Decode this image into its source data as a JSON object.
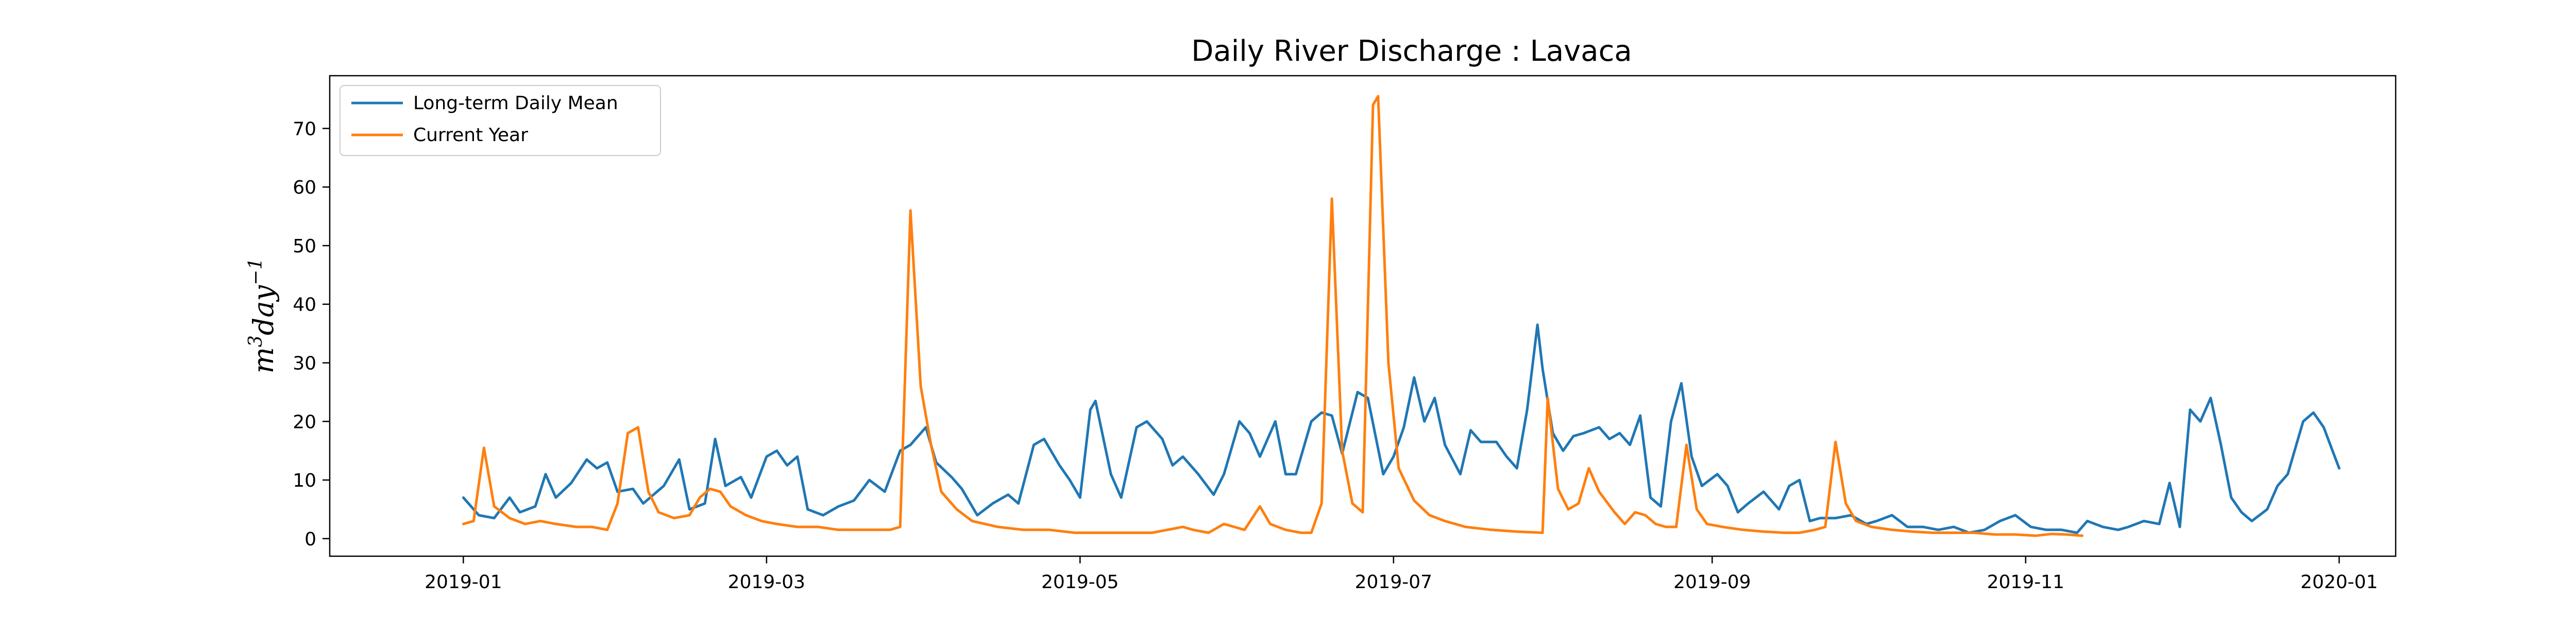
{
  "chart_data": {
    "type": "line",
    "title": "Daily River Discharge : Lavaca",
    "ylabel": "m^3 day^-1",
    "ylabel_parts": {
      "base1": "m",
      "sup1": "3",
      "base2": "day",
      "sup2": "−1"
    },
    "xlabel": "",
    "x_axis_type": "date",
    "xlim": [
      "2018-12-06",
      "2020-01-12"
    ],
    "ylim": [
      -3,
      79
    ],
    "yticks": [
      0,
      10,
      20,
      30,
      40,
      50,
      60,
      70
    ],
    "xticks": [
      "2019-01",
      "2019-03",
      "2019-05",
      "2019-07",
      "2019-09",
      "2019-11",
      "2020-01"
    ],
    "xtick_dates": [
      "2019-01-01",
      "2019-03-01",
      "2019-05-01",
      "2019-07-01",
      "2019-09-01",
      "2019-11-01",
      "2020-01-01"
    ],
    "legend_position": "upper-left",
    "grid": false,
    "series": [
      {
        "name": "Long-term Daily Mean",
        "color": "#1f77b4",
        "points": [
          [
            "2019-01-01",
            7
          ],
          [
            "2019-01-04",
            4
          ],
          [
            "2019-01-07",
            3.5
          ],
          [
            "2019-01-10",
            7
          ],
          [
            "2019-01-12",
            4.5
          ],
          [
            "2019-01-15",
            5.5
          ],
          [
            "2019-01-17",
            11
          ],
          [
            "2019-01-19",
            7
          ],
          [
            "2019-01-22",
            9.5
          ],
          [
            "2019-01-25",
            13.5
          ],
          [
            "2019-01-27",
            12
          ],
          [
            "2019-01-29",
            13
          ],
          [
            "2019-01-31",
            8
          ],
          [
            "2019-02-03",
            8.5
          ],
          [
            "2019-02-05",
            6
          ],
          [
            "2019-02-09",
            9
          ],
          [
            "2019-02-12",
            13.5
          ],
          [
            "2019-02-14",
            5
          ],
          [
            "2019-02-17",
            6
          ],
          [
            "2019-02-19",
            17
          ],
          [
            "2019-02-21",
            9
          ],
          [
            "2019-02-24",
            10.5
          ],
          [
            "2019-02-26",
            7
          ],
          [
            "2019-03-01",
            14
          ],
          [
            "2019-03-03",
            15
          ],
          [
            "2019-03-05",
            12.5
          ],
          [
            "2019-03-07",
            14
          ],
          [
            "2019-03-09",
            5
          ],
          [
            "2019-03-12",
            4
          ],
          [
            "2019-03-15",
            5.5
          ],
          [
            "2019-03-18",
            6.5
          ],
          [
            "2019-03-21",
            10
          ],
          [
            "2019-03-24",
            8
          ],
          [
            "2019-03-27",
            15
          ],
          [
            "2019-03-29",
            16
          ],
          [
            "2019-04-01",
            19
          ],
          [
            "2019-04-03",
            13
          ],
          [
            "2019-04-06",
            10.5
          ],
          [
            "2019-04-08",
            8.5
          ],
          [
            "2019-04-11",
            4
          ],
          [
            "2019-04-14",
            6
          ],
          [
            "2019-04-17",
            7.5
          ],
          [
            "2019-04-19",
            6
          ],
          [
            "2019-04-22",
            16
          ],
          [
            "2019-04-24",
            17
          ],
          [
            "2019-04-27",
            12.5
          ],
          [
            "2019-04-29",
            10
          ],
          [
            "2019-05-01",
            7
          ],
          [
            "2019-05-03",
            22
          ],
          [
            "2019-05-04",
            23.5
          ],
          [
            "2019-05-07",
            11
          ],
          [
            "2019-05-09",
            7
          ],
          [
            "2019-05-12",
            19
          ],
          [
            "2019-05-14",
            20
          ],
          [
            "2019-05-17",
            17
          ],
          [
            "2019-05-19",
            12.5
          ],
          [
            "2019-05-21",
            14
          ],
          [
            "2019-05-24",
            11
          ],
          [
            "2019-05-27",
            7.5
          ],
          [
            "2019-05-29",
            11
          ],
          [
            "2019-06-01",
            20
          ],
          [
            "2019-06-03",
            18
          ],
          [
            "2019-06-05",
            14
          ],
          [
            "2019-06-08",
            20
          ],
          [
            "2019-06-10",
            11
          ],
          [
            "2019-06-12",
            11
          ],
          [
            "2019-06-15",
            20
          ],
          [
            "2019-06-17",
            21.5
          ],
          [
            "2019-06-19",
            21
          ],
          [
            "2019-06-21",
            14.5
          ],
          [
            "2019-06-24",
            25
          ],
          [
            "2019-06-26",
            24
          ],
          [
            "2019-06-29",
            11
          ],
          [
            "2019-07-01",
            14
          ],
          [
            "2019-07-03",
            19
          ],
          [
            "2019-07-05",
            27.5
          ],
          [
            "2019-07-07",
            20
          ],
          [
            "2019-07-09",
            24
          ],
          [
            "2019-07-11",
            16
          ],
          [
            "2019-07-14",
            11
          ],
          [
            "2019-07-16",
            18.5
          ],
          [
            "2019-07-18",
            16.5
          ],
          [
            "2019-07-21",
            16.5
          ],
          [
            "2019-07-23",
            14
          ],
          [
            "2019-07-25",
            12
          ],
          [
            "2019-07-27",
            22
          ],
          [
            "2019-07-29",
            36.5
          ],
          [
            "2019-07-30",
            29
          ],
          [
            "2019-08-01",
            18
          ],
          [
            "2019-08-03",
            15
          ],
          [
            "2019-08-05",
            17.5
          ],
          [
            "2019-08-07",
            18
          ],
          [
            "2019-08-10",
            19
          ],
          [
            "2019-08-12",
            17
          ],
          [
            "2019-08-14",
            18
          ],
          [
            "2019-08-16",
            16
          ],
          [
            "2019-08-18",
            21
          ],
          [
            "2019-08-20",
            7
          ],
          [
            "2019-08-22",
            5.5
          ],
          [
            "2019-08-24",
            20
          ],
          [
            "2019-08-26",
            26.5
          ],
          [
            "2019-08-28",
            14
          ],
          [
            "2019-08-30",
            9
          ],
          [
            "2019-09-02",
            11
          ],
          [
            "2019-09-04",
            9
          ],
          [
            "2019-09-06",
            4.5
          ],
          [
            "2019-09-08",
            6
          ],
          [
            "2019-09-11",
            8
          ],
          [
            "2019-09-14",
            5
          ],
          [
            "2019-09-16",
            9
          ],
          [
            "2019-09-18",
            10
          ],
          [
            "2019-09-20",
            3
          ],
          [
            "2019-09-22",
            3.5
          ],
          [
            "2019-09-25",
            3.5
          ],
          [
            "2019-09-28",
            4
          ],
          [
            "2019-10-01",
            2.5
          ],
          [
            "2019-10-03",
            3
          ],
          [
            "2019-10-06",
            4
          ],
          [
            "2019-10-09",
            2
          ],
          [
            "2019-10-12",
            2
          ],
          [
            "2019-10-15",
            1.5
          ],
          [
            "2019-10-18",
            2
          ],
          [
            "2019-10-21",
            1
          ],
          [
            "2019-10-24",
            1.5
          ],
          [
            "2019-10-27",
            3
          ],
          [
            "2019-10-30",
            4
          ],
          [
            "2019-11-02",
            2
          ],
          [
            "2019-11-05",
            1.5
          ],
          [
            "2019-11-08",
            1.5
          ],
          [
            "2019-11-11",
            1
          ],
          [
            "2019-11-13",
            3
          ],
          [
            "2019-11-16",
            2
          ],
          [
            "2019-11-19",
            1.5
          ],
          [
            "2019-11-21",
            2
          ],
          [
            "2019-11-24",
            3
          ],
          [
            "2019-11-27",
            2.5
          ],
          [
            "2019-11-29",
            9.5
          ],
          [
            "2019-12-01",
            2
          ],
          [
            "2019-12-03",
            22
          ],
          [
            "2019-12-05",
            20
          ],
          [
            "2019-12-07",
            24
          ],
          [
            "2019-12-09",
            16
          ],
          [
            "2019-12-11",
            7
          ],
          [
            "2019-12-13",
            4.5
          ],
          [
            "2019-12-15",
            3
          ],
          [
            "2019-12-18",
            5
          ],
          [
            "2019-12-20",
            9
          ],
          [
            "2019-12-22",
            11
          ],
          [
            "2019-12-25",
            20
          ],
          [
            "2019-12-27",
            21.5
          ],
          [
            "2019-12-29",
            19
          ],
          [
            "2020-01-01",
            12
          ]
        ]
      },
      {
        "name": "Current Year",
        "color": "#ff7f0e",
        "points": [
          [
            "2019-01-01",
            2.5
          ],
          [
            "2019-01-03",
            3
          ],
          [
            "2019-01-05",
            15.5
          ],
          [
            "2019-01-07",
            5.5
          ],
          [
            "2019-01-10",
            3.5
          ],
          [
            "2019-01-13",
            2.5
          ],
          [
            "2019-01-16",
            3
          ],
          [
            "2019-01-19",
            2.5
          ],
          [
            "2019-01-23",
            2
          ],
          [
            "2019-01-26",
            2
          ],
          [
            "2019-01-29",
            1.5
          ],
          [
            "2019-01-31",
            6
          ],
          [
            "2019-02-02",
            18
          ],
          [
            "2019-02-04",
            19
          ],
          [
            "2019-02-06",
            8
          ],
          [
            "2019-02-08",
            4.5
          ],
          [
            "2019-02-11",
            3.5
          ],
          [
            "2019-02-14",
            4
          ],
          [
            "2019-02-16",
            7
          ],
          [
            "2019-02-18",
            8.5
          ],
          [
            "2019-02-20",
            8
          ],
          [
            "2019-02-22",
            5.5
          ],
          [
            "2019-02-25",
            4
          ],
          [
            "2019-02-28",
            3
          ],
          [
            "2019-03-03",
            2.5
          ],
          [
            "2019-03-07",
            2
          ],
          [
            "2019-03-11",
            2
          ],
          [
            "2019-03-15",
            1.5
          ],
          [
            "2019-03-19",
            1.5
          ],
          [
            "2019-03-22",
            1.5
          ],
          [
            "2019-03-25",
            1.5
          ],
          [
            "2019-03-27",
            2
          ],
          [
            "2019-03-29",
            56
          ],
          [
            "2019-03-31",
            26
          ],
          [
            "2019-04-02",
            16
          ],
          [
            "2019-04-04",
            8
          ],
          [
            "2019-04-07",
            5
          ],
          [
            "2019-04-10",
            3
          ],
          [
            "2019-04-15",
            2
          ],
          [
            "2019-04-20",
            1.5
          ],
          [
            "2019-04-25",
            1.5
          ],
          [
            "2019-04-30",
            1
          ],
          [
            "2019-05-05",
            1
          ],
          [
            "2019-05-10",
            1
          ],
          [
            "2019-05-15",
            1
          ],
          [
            "2019-05-18",
            1.5
          ],
          [
            "2019-05-21",
            2
          ],
          [
            "2019-05-23",
            1.5
          ],
          [
            "2019-05-26",
            1
          ],
          [
            "2019-05-29",
            2.5
          ],
          [
            "2019-05-31",
            2
          ],
          [
            "2019-06-02",
            1.5
          ],
          [
            "2019-06-05",
            5.5
          ],
          [
            "2019-06-07",
            2.5
          ],
          [
            "2019-06-10",
            1.5
          ],
          [
            "2019-06-13",
            1
          ],
          [
            "2019-06-15",
            1
          ],
          [
            "2019-06-17",
            6
          ],
          [
            "2019-06-19",
            58
          ],
          [
            "2019-06-21",
            15
          ],
          [
            "2019-06-23",
            6
          ],
          [
            "2019-06-25",
            4.5
          ],
          [
            "2019-06-27",
            74
          ],
          [
            "2019-06-28",
            75.5
          ],
          [
            "2019-06-30",
            30
          ],
          [
            "2019-07-02",
            12
          ],
          [
            "2019-07-05",
            6.5
          ],
          [
            "2019-07-08",
            4
          ],
          [
            "2019-07-11",
            3
          ],
          [
            "2019-07-15",
            2
          ],
          [
            "2019-07-20",
            1.5
          ],
          [
            "2019-07-25",
            1.2
          ],
          [
            "2019-07-30",
            1
          ],
          [
            "2019-07-31",
            24
          ],
          [
            "2019-08-02",
            8.5
          ],
          [
            "2019-08-04",
            5
          ],
          [
            "2019-08-06",
            6
          ],
          [
            "2019-08-08",
            12
          ],
          [
            "2019-08-10",
            8
          ],
          [
            "2019-08-13",
            4.5
          ],
          [
            "2019-08-15",
            2.5
          ],
          [
            "2019-08-17",
            4.5
          ],
          [
            "2019-08-19",
            4
          ],
          [
            "2019-08-21",
            2.5
          ],
          [
            "2019-08-23",
            2
          ],
          [
            "2019-08-25",
            2
          ],
          [
            "2019-08-27",
            16
          ],
          [
            "2019-08-29",
            5
          ],
          [
            "2019-08-31",
            2.5
          ],
          [
            "2019-09-03",
            2
          ],
          [
            "2019-09-07",
            1.5
          ],
          [
            "2019-09-11",
            1.2
          ],
          [
            "2019-09-15",
            1
          ],
          [
            "2019-09-18",
            1
          ],
          [
            "2019-09-21",
            1.5
          ],
          [
            "2019-09-23",
            2
          ],
          [
            "2019-09-25",
            16.5
          ],
          [
            "2019-09-27",
            6
          ],
          [
            "2019-09-29",
            3
          ],
          [
            "2019-10-02",
            2
          ],
          [
            "2019-10-06",
            1.5
          ],
          [
            "2019-10-10",
            1.2
          ],
          [
            "2019-10-14",
            1
          ],
          [
            "2019-10-18",
            1
          ],
          [
            "2019-10-22",
            1
          ],
          [
            "2019-10-26",
            0.7
          ],
          [
            "2019-10-30",
            0.7
          ],
          [
            "2019-11-03",
            0.5
          ],
          [
            "2019-11-06",
            0.8
          ],
          [
            "2019-11-09",
            0.7
          ],
          [
            "2019-11-12",
            0.5
          ]
        ]
      }
    ]
  }
}
